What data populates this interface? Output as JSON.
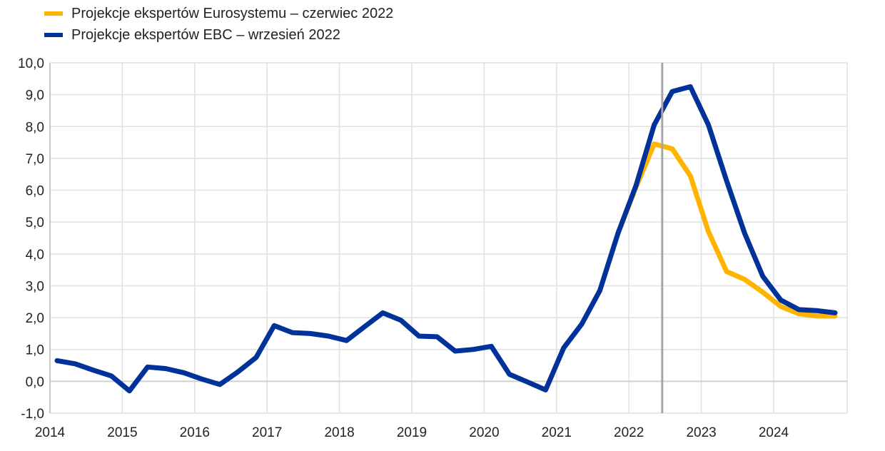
{
  "chart_data": {
    "type": "line",
    "title": "",
    "xlabel": "",
    "ylabel": "",
    "ylim": [
      -1,
      10
    ],
    "yticks": [
      "-1,0",
      "0,0",
      "1,0",
      "2,0",
      "3,0",
      "4,0",
      "5,0",
      "6,0",
      "7,0",
      "8,0",
      "9,0",
      "10,0"
    ],
    "xticks": [
      "2014",
      "2015",
      "2016",
      "2017",
      "2018",
      "2019",
      "2020",
      "2021",
      "2022",
      "2023",
      "2024"
    ],
    "grid": true,
    "legend_position": "top-left",
    "vertical_marker": 2022.46,
    "x_start": "2014Q1",
    "frequency": "quarterly",
    "series": [
      {
        "name": "Projekcje ekspertów Eurosystemu – czerwiec 2022",
        "color": "#FFB400",
        "start_index": 31,
        "values": [
          4.65,
          6.1,
          7.45,
          7.3,
          6.45,
          4.7,
          3.45,
          3.2,
          2.8,
          2.35,
          2.12,
          2.05,
          2.05
        ]
      },
      {
        "name": "Projekcje ekspertów EBC – wrzesień 2022",
        "color": "#003299",
        "start_index": 0,
        "values": [
          0.65,
          0.55,
          0.35,
          0.17,
          -0.3,
          0.45,
          0.4,
          0.27,
          0.07,
          -0.1,
          0.3,
          0.75,
          1.75,
          1.53,
          1.5,
          1.42,
          1.28,
          1.72,
          2.15,
          1.92,
          1.42,
          1.4,
          0.95,
          1.0,
          1.1,
          0.22,
          -0.02,
          -0.27,
          1.05,
          1.8,
          2.85,
          4.65,
          6.15,
          8.05,
          9.1,
          9.25,
          8.05,
          6.3,
          4.65,
          3.3,
          2.55,
          2.25,
          2.22,
          2.15
        ]
      }
    ]
  }
}
